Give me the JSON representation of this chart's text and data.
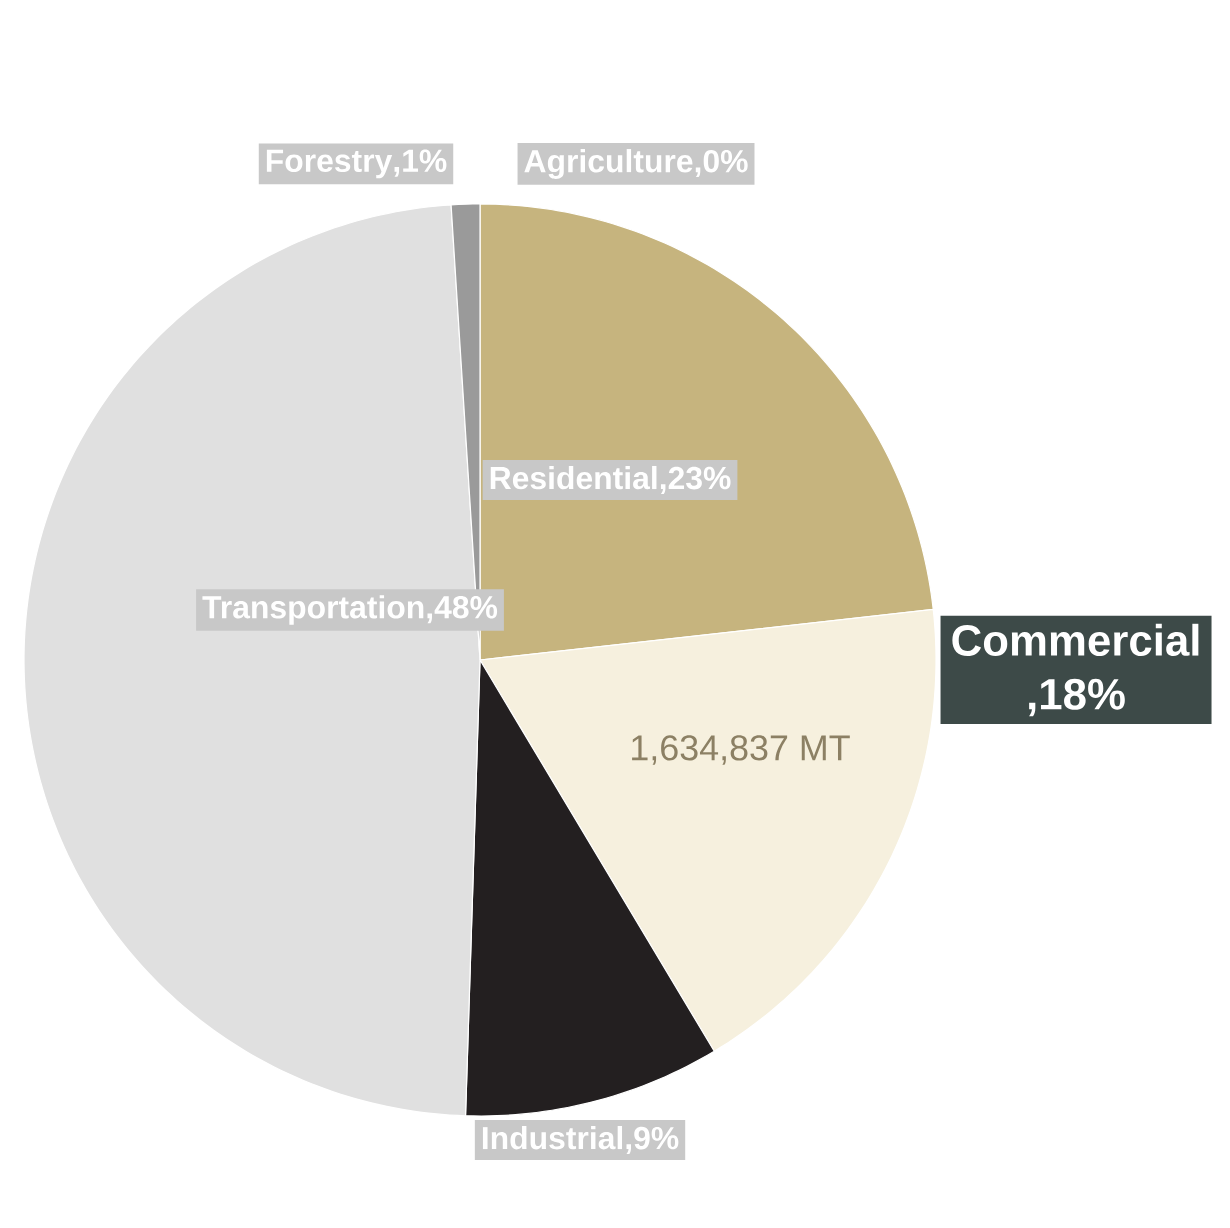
{
  "chart_data": {
    "type": "pie",
    "categories": [
      "Residential",
      "Commercial",
      "Industrial",
      "Transportation",
      "Forestry",
      "Agriculture"
    ],
    "values": [
      23,
      18,
      9,
      48,
      1,
      0
    ],
    "colors": [
      "#c6b47e",
      "#f6f0de",
      "#231f20",
      "#e0e0e0",
      "#9a9a9a",
      "#808080"
    ],
    "value_labels": [
      ",23%",
      ",18%",
      ",9%",
      ",48%",
      ",1%",
      ",0%"
    ],
    "annotations": [
      "1,634,837 MT"
    ]
  }
}
